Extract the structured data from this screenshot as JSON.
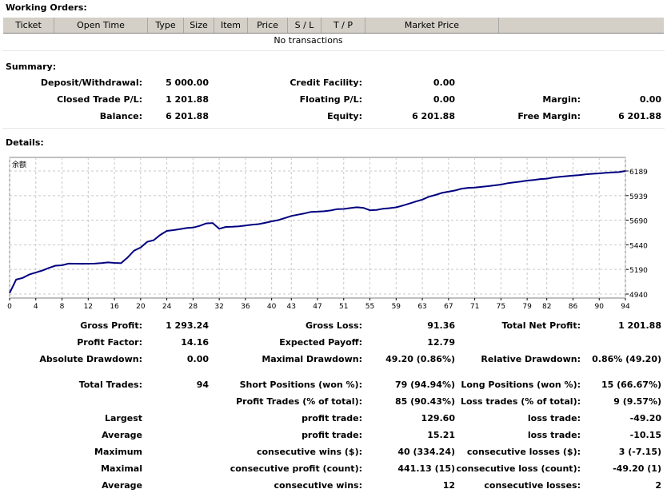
{
  "working_orders": {
    "title": "Working Orders:",
    "columns": [
      "Ticket",
      "Open Time",
      "Type",
      "Size",
      "Item",
      "Price",
      "S / L",
      "T / P",
      "Market Price"
    ],
    "empty_text": "No transactions"
  },
  "summary": {
    "title": "Summary:",
    "deposit_label": "Deposit/Withdrawal:",
    "deposit_value": "5 000.00",
    "credit_label": "Credit Facility:",
    "credit_value": "0.00",
    "closed_label": "Closed Trade P/L:",
    "closed_value": "1 201.88",
    "floating_label": "Floating P/L:",
    "floating_value": "0.00",
    "margin_label": "Margin:",
    "margin_value": "0.00",
    "balance_label": "Balance:",
    "balance_value": "6 201.88",
    "equity_label": "Equity:",
    "equity_value": "6 201.88",
    "freemargin_label": "Free Margin:",
    "freemargin_value": "6 201.88"
  },
  "details": {
    "title": "Details:",
    "rows": [
      {
        "l1": "Gross Profit:",
        "v1": "1 293.24",
        "l2": "Gross Loss:",
        "v2": "91.36",
        "l3": "Total Net Profit:",
        "v3": "1 201.88"
      },
      {
        "l1": "Profit Factor:",
        "v1": "14.16",
        "l2": "Expected Payoff:",
        "v2": "12.79",
        "l3": "",
        "v3": ""
      },
      {
        "l1": "Absolute Drawdown:",
        "v1": "0.00",
        "l2": "Maximal Drawdown:",
        "v2": "49.20 (0.86%)",
        "l3": "Relative Drawdown:",
        "v3": "0.86% (49.20)"
      },
      {
        "l1": "Total Trades:",
        "v1": "94",
        "l2": "Short Positions (won %):",
        "v2": "79 (94.94%)",
        "l3": "Long Positions (won %):",
        "v3": "15 (66.67%)"
      },
      {
        "l1": "",
        "v1": "",
        "l2": "Profit Trades (% of total):",
        "v2": "85 (90.43%)",
        "l3": "Loss trades (% of total):",
        "v3": "9 (9.57%)"
      },
      {
        "l1": "Largest",
        "v1": "",
        "l2": "profit trade:",
        "v2": "129.60",
        "l3": "loss trade:",
        "v3": "-49.20"
      },
      {
        "l1": "Average",
        "v1": "",
        "l2": "profit trade:",
        "v2": "15.21",
        "l3": "loss trade:",
        "v3": "-10.15"
      },
      {
        "l1": "Maximum",
        "v1": "",
        "l2": "consecutive wins ($):",
        "v2": "40 (334.24)",
        "l3": "consecutive losses ($):",
        "v3": "3 (-7.15)"
      },
      {
        "l1": "Maximal",
        "v1": "",
        "l2": "consecutive profit (count):",
        "v2": "441.13 (15)",
        "l3": "consecutive loss (count):",
        "v3": "-49.20 (1)"
      },
      {
        "l1": "Average",
        "v1": "",
        "l2": "consecutive wins:",
        "v2": "12",
        "l3": "consecutive losses:",
        "v3": "2"
      }
    ]
  },
  "chart_data": {
    "type": "line",
    "legend_label": "余额",
    "line_color": "#000080",
    "x_ticks": [
      0,
      4,
      8,
      12,
      16,
      20,
      24,
      28,
      32,
      36,
      40,
      43,
      47,
      51,
      55,
      59,
      63,
      67,
      71,
      75,
      79,
      82,
      86,
      90,
      94
    ],
    "y_ticks": [
      4940,
      5190,
      5440,
      5690,
      5939,
      6189
    ],
    "xlim": [
      0,
      94
    ],
    "ylim": [
      4940,
      6189
    ],
    "grid": true,
    "series": [
      {
        "x": [
          0,
          1,
          2,
          3,
          4,
          5,
          6,
          7,
          8,
          9,
          10,
          11,
          12,
          13,
          14,
          15,
          16,
          17,
          18,
          19,
          20,
          21,
          22,
          23,
          24,
          25,
          26,
          27,
          28,
          29,
          30,
          31,
          32,
          33,
          34,
          35,
          36,
          37,
          38,
          39,
          40,
          41,
          42,
          43,
          44,
          45,
          46,
          47,
          48,
          49,
          50,
          51,
          52,
          53,
          54,
          55,
          56,
          57,
          58,
          59,
          60,
          61,
          62,
          63,
          64,
          65,
          66,
          67,
          68,
          69,
          70,
          71,
          72,
          73,
          74,
          75,
          76,
          77,
          78,
          79,
          80,
          81,
          82,
          83,
          84,
          85,
          86,
          87,
          88,
          89,
          90,
          91,
          92,
          93,
          94
        ],
        "y": [
          4950,
          5087,
          5104,
          5138,
          5158,
          5179,
          5205,
          5228,
          5232,
          5249,
          5248,
          5247,
          5248,
          5249,
          5254,
          5261,
          5256,
          5253,
          5310,
          5380,
          5412,
          5470,
          5487,
          5540,
          5581,
          5589,
          5599,
          5610,
          5615,
          5632,
          5657,
          5661,
          5603,
          5621,
          5624,
          5628,
          5635,
          5643,
          5650,
          5663,
          5678,
          5690,
          5711,
          5732,
          5745,
          5758,
          5774,
          5776,
          5780,
          5788,
          5802,
          5804,
          5813,
          5821,
          5815,
          5791,
          5794,
          5806,
          5812,
          5820,
          5838,
          5858,
          5879,
          5899,
          5928,
          5946,
          5967,
          5979,
          5991,
          6010,
          6018,
          6021,
          6028,
          6035,
          6043,
          6051,
          6065,
          6074,
          6082,
          6092,
          6097,
          6107,
          6111,
          6123,
          6130,
          6136,
          6142,
          6148,
          6156,
          6161,
          6165,
          6170,
          6174,
          6178,
          6189
        ]
      }
    ]
  }
}
